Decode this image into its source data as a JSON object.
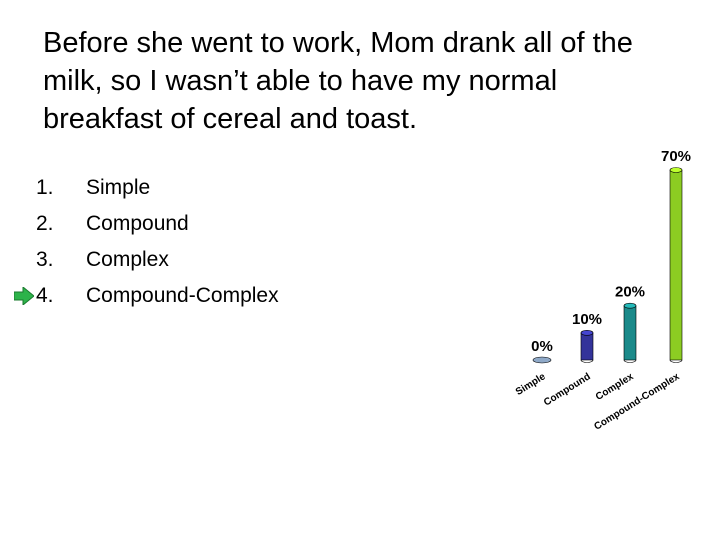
{
  "question": "Before she went to work, Mom drank all of the milk, so I wasn’t able to have my normal breakfast of cereal and toast.",
  "options": [
    {
      "num": "1.",
      "label": "Simple",
      "marked": false
    },
    {
      "num": "2.",
      "label": "Compound",
      "marked": false
    },
    {
      "num": "3.",
      "label": "Complex",
      "marked": false
    },
    {
      "num": "4.",
      "label": "Compound-Complex",
      "marked": true
    }
  ],
  "marker_icon": "right-arrow-icon",
  "chart_data": {
    "type": "bar",
    "categories": [
      "Simple",
      "Compound",
      "Complex",
      "Compound-Complex"
    ],
    "values": [
      0,
      10,
      20,
      70
    ],
    "value_labels": [
      "0%",
      "10%",
      "20%",
      "70%"
    ],
    "ylim": [
      0,
      70
    ],
    "grid": false,
    "colors": [
      "#8fa9c8",
      "#33339a",
      "#1b8a8a",
      "#8ccc22"
    ]
  }
}
